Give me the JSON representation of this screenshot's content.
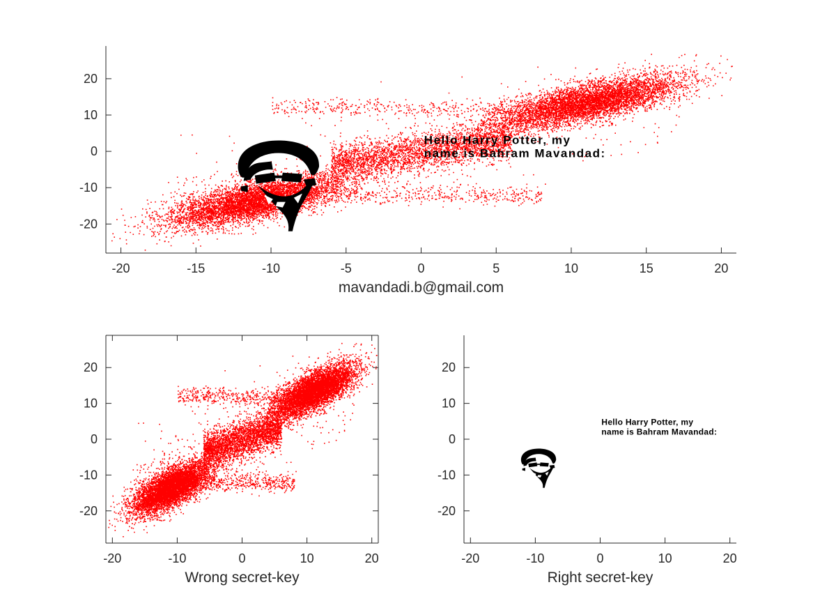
{
  "colors": {
    "scatter": "#ff0000",
    "overlay": "#000000",
    "axis": "#262626"
  },
  "chart_data": [
    {
      "id": "top",
      "type": "scatter",
      "title": "",
      "xlabel": "mavandadi.b@gmail.com",
      "ylabel": "",
      "xlim": [
        -21,
        21
      ],
      "ylim": [
        -28,
        29
      ],
      "xticks": [
        -20,
        -15,
        -10,
        -5,
        0,
        5,
        10,
        15,
        20
      ],
      "yticks": [
        -20,
        -10,
        0,
        10,
        20
      ],
      "grid": false,
      "legend": "none",
      "series": [
        {
          "values": "red scatter cloud, ~20000 points, S-shaped band from (-20,-23) to (20,21)"
        }
      ],
      "overlay": {
        "portrait_center": [
          -9.5,
          -7
        ],
        "message_lines": [
          "Hello Harry Potter, my",
          "name is Bahram Mavandad:"
        ],
        "message_anchor": [
          0.2,
          2
        ]
      }
    },
    {
      "id": "bottom-left",
      "type": "scatter",
      "title": "",
      "xlabel": "Wrong secret-key",
      "ylabel": "",
      "xlim": [
        -21,
        21
      ],
      "ylim": [
        -29,
        29
      ],
      "xticks": [
        -20,
        -10,
        0,
        10,
        20
      ],
      "yticks": [
        -20,
        -10,
        0,
        10,
        20
      ],
      "grid": false,
      "legend": "none"
    },
    {
      "id": "bottom-right",
      "type": "scatter",
      "title": "",
      "xlabel": "Right secret-key",
      "ylabel": "",
      "xlim": [
        -21,
        21
      ],
      "ylim": [
        -29,
        29
      ],
      "xticks": [
        -20,
        -10,
        0,
        10,
        20
      ],
      "yticks": [
        -20,
        -10,
        0,
        10,
        20
      ],
      "grid": false,
      "legend": "none",
      "overlay": {
        "portrait_center": [
          -9.5,
          -7
        ],
        "message_lines": [
          "Hello Harry Potter, my",
          "name is Bahram Mavandad:"
        ],
        "message_anchor": [
          0.2,
          4
        ]
      }
    }
  ]
}
